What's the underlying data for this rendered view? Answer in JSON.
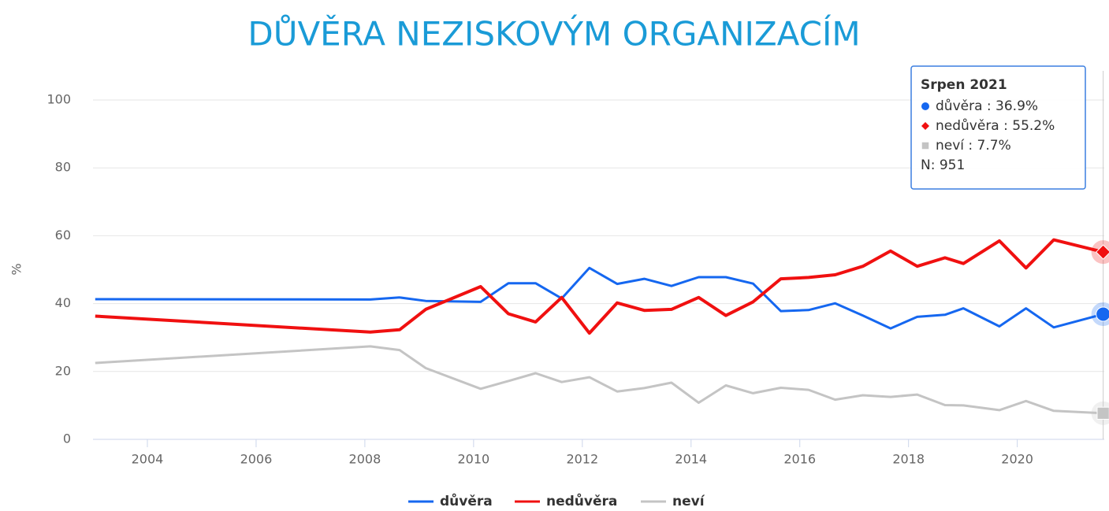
{
  "chart_data": {
    "type": "line",
    "title": "DŮVĚRA NEZISKOVÝM ORGANIZACÍM",
    "y_label": "%",
    "x": [
      2003.04,
      2008.1,
      2008.64,
      2009.12,
      2010.13,
      2010.64,
      2011.14,
      2011.62,
      2012.13,
      2012.64,
      2013.14,
      2013.64,
      2014.14,
      2014.64,
      2015.14,
      2015.65,
      2016.16,
      2016.65,
      2017.16,
      2017.67,
      2018.16,
      2018.67,
      2019.01,
      2019.67,
      2020.16,
      2020.67,
      2021.58
    ],
    "series": [
      {
        "name": "důvěra",
        "color": "#1567f0",
        "marker": "circle",
        "values": [
          41.3,
          41.2,
          41.8,
          40.8,
          40.5,
          46,
          46,
          41.5,
          50.5,
          45.8,
          47.3,
          45.2,
          47.8,
          47.8,
          45.9,
          37.8,
          38.1,
          40.1,
          36.5,
          32.7,
          36.1,
          36.7,
          38.6,
          33.3,
          38.6,
          33,
          36.9
        ]
      },
      {
        "name": "nedůvěra",
        "color": "#f01010",
        "marker": "diamond",
        "values": [
          36.3,
          31.6,
          32.3,
          38.3,
          45,
          37,
          34.6,
          41.8,
          31.3,
          40.2,
          38,
          38.3,
          41.8,
          36.5,
          40.5,
          47.3,
          47.7,
          48.5,
          51,
          55.5,
          51,
          53.5,
          51.8,
          58.5,
          50.5,
          58.8,
          55.2
        ]
      },
      {
        "name": "neví",
        "color": "#c4c4c4",
        "marker": "square",
        "values": [
          22.5,
          27.4,
          26.3,
          21,
          14.9,
          17.2,
          19.5,
          16.9,
          18.3,
          14.1,
          15.1,
          16.7,
          10.8,
          15.9,
          13.6,
          15.2,
          14.6,
          11.7,
          13,
          12.5,
          13.2,
          10.1,
          10,
          8.6,
          11.3,
          8.4,
          7.7
        ]
      }
    ],
    "xlim": [
      2003,
      2021.6
    ],
    "xticks": [
      2004,
      2006,
      2008,
      2010,
      2012,
      2014,
      2016,
      2018,
      2020
    ],
    "ylim": [
      0,
      100
    ],
    "yticks": [
      0,
      20,
      40,
      60,
      80,
      100
    ],
    "grid": true,
    "tooltip": {
      "title": "Srpen 2021",
      "lines": [
        "důvěra : 36.9%",
        "nedůvěra : 55.2%",
        "neví : 7.7%"
      ],
      "note": "N: 951"
    }
  }
}
